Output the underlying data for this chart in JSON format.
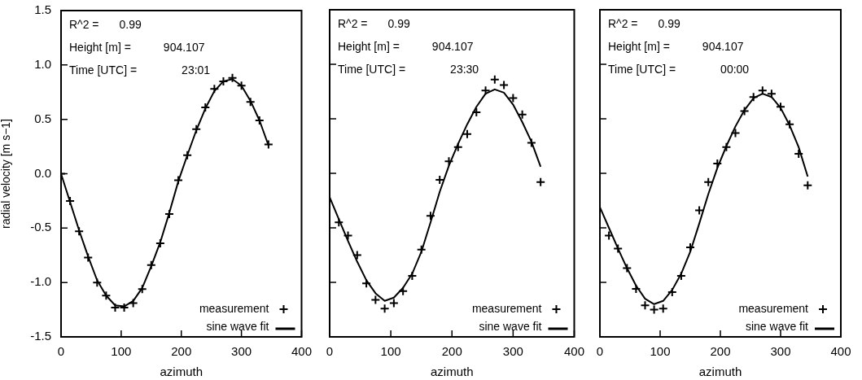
{
  "chart_data": [
    {
      "type": "scatter",
      "xlabel": "azimuth",
      "ylabel": "radial velocity [m s−1]",
      "xlim": [
        0,
        400
      ],
      "xticks": [
        0,
        100,
        200,
        300,
        400
      ],
      "ylim": [
        -1.5,
        1.5
      ],
      "yticks": [
        {
          "value": -1.5,
          "label": "-1.5"
        },
        {
          "value": -1,
          "label": "-1.0"
        },
        {
          "value": -0.5,
          "label": "-0.5"
        },
        {
          "value": 0,
          "label": "0.0"
        },
        {
          "value": 0.5,
          "label": "0.5"
        },
        {
          "value": 1,
          "label": "1.0"
        },
        {
          "value": 1.5,
          "label": "1.5"
        }
      ],
      "grid": false,
      "legend": "bottom right",
      "annotations": [
        "R^2 =",
        "0.99",
        "Height [m] =",
        "904.107",
        "Time [UTC] =",
        "23:01"
      ],
      "series": [
        {
          "name": "measurement",
          "marker": "cross",
          "color": "#000000",
          "x": [
            0,
            15,
            30,
            45,
            60,
            75,
            90,
            105,
            120,
            135,
            150,
            165,
            180,
            195,
            210,
            225,
            240,
            255,
            270,
            285,
            300,
            315,
            330,
            345
          ],
          "values": [
            0.0,
            -0.25,
            -0.53,
            -0.77,
            -1.0,
            -1.12,
            -1.23,
            -1.23,
            -1.19,
            -1.06,
            -0.84,
            -0.64,
            -0.37,
            -0.06,
            0.17,
            0.41,
            0.61,
            0.78,
            0.85,
            0.88,
            0.81,
            0.66,
            0.49,
            0.27
          ]
        },
        {
          "name": "sine wave fit",
          "type": "line",
          "marker": "none",
          "line_style": "solid",
          "color": "#000000",
          "x": [
            0,
            15,
            30,
            45,
            60,
            75,
            90,
            105,
            120,
            135,
            150,
            165,
            180,
            195,
            210,
            225,
            240,
            255,
            270,
            285,
            300,
            315,
            330,
            345
          ],
          "values": [
            0.0,
            -0.26,
            -0.52,
            -0.76,
            -0.98,
            -1.12,
            -1.21,
            -1.22,
            -1.17,
            -1.05,
            -0.85,
            -0.63,
            -0.36,
            -0.07,
            0.17,
            0.4,
            0.6,
            0.76,
            0.85,
            0.87,
            0.81,
            0.67,
            0.49,
            0.26
          ]
        }
      ]
    },
    {
      "type": "scatter",
      "xlabel": "azimuth",
      "xlim": [
        0,
        400
      ],
      "xticks": [
        0,
        100,
        200,
        300,
        400
      ],
      "ylim": [
        -1.5,
        1.5
      ],
      "yticks": [
        -1.5,
        -1,
        -0.5,
        0,
        0.5,
        1,
        1.5
      ],
      "tick_labels": "x",
      "grid": false,
      "legend": "bottom right",
      "annotations": [
        "R^2 =",
        "0.99",
        "Height [m] =",
        "904.107",
        "Time [UTC] =",
        "23:30"
      ],
      "series": [
        {
          "name": "measurement",
          "marker": "cross",
          "color": "#000000",
          "x": [
            15,
            30,
            45,
            60,
            75,
            90,
            105,
            120,
            135,
            150,
            165,
            180,
            195,
            210,
            225,
            240,
            255,
            270,
            285,
            300,
            315,
            330,
            345
          ],
          "values": [
            -0.45,
            -0.57,
            -0.75,
            -1.01,
            -1.16,
            -1.24,
            -1.19,
            -1.08,
            -0.94,
            -0.7,
            -0.39,
            -0.06,
            0.11,
            0.24,
            0.36,
            0.56,
            0.76,
            0.86,
            0.81,
            0.69,
            0.54,
            0.28,
            -0.08
          ]
        },
        {
          "name": "sine wave fit",
          "type": "line",
          "marker": "none",
          "line_style": "solid",
          "color": "#000000",
          "x": [
            0,
            15,
            30,
            45,
            60,
            75,
            90,
            105,
            120,
            135,
            150,
            165,
            180,
            195,
            210,
            225,
            240,
            255,
            270,
            285,
            300,
            315,
            330,
            345
          ],
          "values": [
            -0.22,
            -0.42,
            -0.62,
            -0.81,
            -0.98,
            -1.1,
            -1.17,
            -1.14,
            -1.05,
            -0.92,
            -0.72,
            -0.45,
            -0.17,
            0.07,
            0.27,
            0.45,
            0.61,
            0.73,
            0.77,
            0.74,
            0.63,
            0.47,
            0.29,
            0.06
          ]
        }
      ]
    },
    {
      "type": "scatter",
      "xlabel": "azimuth",
      "xlim": [
        0,
        400
      ],
      "xticks": [
        0,
        100,
        200,
        300,
        400
      ],
      "ylim": [
        -1.5,
        1.5
      ],
      "yticks": [
        -1.5,
        -1,
        -0.5,
        0,
        0.5,
        1,
        1.5
      ],
      "tick_labels": "x",
      "grid": false,
      "legend": "bottom right",
      "annotations": [
        "R^2 =",
        "0.99",
        "Height [m] =",
        "904.107",
        "Time [UTC] =",
        "00:00"
      ],
      "series": [
        {
          "name": "measurement",
          "marker": "cross",
          "color": "#000000",
          "x": [
            15,
            30,
            45,
            60,
            75,
            90,
            105,
            120,
            135,
            150,
            165,
            180,
            195,
            210,
            225,
            240,
            255,
            270,
            285,
            300,
            315,
            330,
            345
          ],
          "values": [
            -0.57,
            -0.69,
            -0.87,
            -1.06,
            -1.21,
            -1.25,
            -1.24,
            -1.09,
            -0.94,
            -0.68,
            -0.34,
            -0.08,
            0.09,
            0.24,
            0.37,
            0.57,
            0.7,
            0.76,
            0.73,
            0.61,
            0.45,
            0.18,
            -0.11
          ]
        },
        {
          "name": "sine wave fit",
          "type": "line",
          "marker": "none",
          "line_style": "solid",
          "color": "#000000",
          "x": [
            0,
            15,
            30,
            45,
            60,
            75,
            90,
            105,
            120,
            135,
            150,
            165,
            180,
            195,
            210,
            225,
            240,
            255,
            270,
            285,
            300,
            315,
            330,
            345
          ],
          "values": [
            -0.31,
            -0.5,
            -0.69,
            -0.87,
            -1.03,
            -1.15,
            -1.2,
            -1.17,
            -1.07,
            -0.92,
            -0.72,
            -0.46,
            -0.19,
            0.05,
            0.25,
            0.43,
            0.58,
            0.69,
            0.73,
            0.7,
            0.6,
            0.44,
            0.24,
            -0.03
          ]
        }
      ]
    }
  ]
}
